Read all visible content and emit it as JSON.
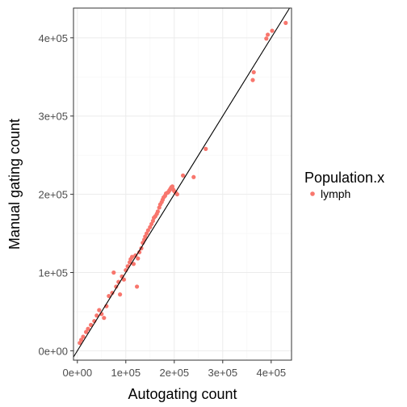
{
  "chart_data": {
    "type": "scatter",
    "xlabel": "Autogating count",
    "ylabel": "Manual gating count",
    "xlim": [
      -8000,
      442000
    ],
    "ylim": [
      -12000,
      438000
    ],
    "x_ticks": [
      0,
      100000,
      200000,
      300000,
      400000
    ],
    "x_tick_labels": [
      "0e+00",
      "1e+05",
      "2e+05",
      "3e+05",
      "4e+05"
    ],
    "y_ticks": [
      0,
      100000,
      200000,
      300000,
      400000
    ],
    "y_tick_labels": [
      "0e+00",
      "1e+05",
      "2e+05",
      "3e+05",
      "4e+05"
    ],
    "grid": true,
    "legend_position": "right",
    "legend": {
      "title": "Population.x",
      "entries": [
        {
          "label": "lymph",
          "color": "#F8766D"
        }
      ]
    },
    "reference_line": {
      "type": "identity",
      "slope": 1,
      "intercept": 0,
      "color": "#000000"
    },
    "series": [
      {
        "name": "lymph",
        "color": "#F8766D",
        "points": [
          [
            5000,
            10000
          ],
          [
            8000,
            14000
          ],
          [
            12000,
            18000
          ],
          [
            18000,
            24000
          ],
          [
            22000,
            28000
          ],
          [
            28000,
            33000
          ],
          [
            35000,
            38000
          ],
          [
            40000,
            45000
          ],
          [
            45000,
            52000
          ],
          [
            50000,
            47000
          ],
          [
            55000,
            42000
          ],
          [
            60000,
            57000
          ],
          [
            65000,
            70000
          ],
          [
            72000,
            74000
          ],
          [
            75000,
            100000
          ],
          [
            80000,
            82000
          ],
          [
            85000,
            88000
          ],
          [
            88000,
            72000
          ],
          [
            92000,
            95000
          ],
          [
            96000,
            91000
          ],
          [
            100000,
            103000
          ],
          [
            104000,
            108000
          ],
          [
            108000,
            113000
          ],
          [
            110000,
            117000
          ],
          [
            113000,
            120000
          ],
          [
            116000,
            111000
          ],
          [
            120000,
            122000
          ],
          [
            123000,
            82000
          ],
          [
            125000,
            118000
          ],
          [
            128000,
            126000
          ],
          [
            132000,
            131000
          ],
          [
            135000,
            138000
          ],
          [
            138000,
            142000
          ],
          [
            140000,
            146000
          ],
          [
            143000,
            150000
          ],
          [
            146000,
            154000
          ],
          [
            150000,
            158000
          ],
          [
            153000,
            162000
          ],
          [
            156000,
            166000
          ],
          [
            158000,
            170000
          ],
          [
            161000,
            172000
          ],
          [
            164000,
            175000
          ],
          [
            166000,
            178000
          ],
          [
            169000,
            183000
          ],
          [
            171000,
            187000
          ],
          [
            174000,
            190000
          ],
          [
            176000,
            193000
          ],
          [
            178000,
            196000
          ],
          [
            181000,
            198000
          ],
          [
            183000,
            201000
          ],
          [
            186000,
            202000
          ],
          [
            188000,
            203000
          ],
          [
            190000,
            205000
          ],
          [
            192000,
            207000
          ],
          [
            194000,
            209000
          ],
          [
            196000,
            210000
          ],
          [
            198000,
            206000
          ],
          [
            200000,
            204000
          ],
          [
            203000,
            202000
          ],
          [
            206000,
            200000
          ],
          [
            218000,
            224000
          ],
          [
            240000,
            222000
          ],
          [
            265000,
            258000
          ],
          [
            362000,
            346000
          ],
          [
            364000,
            356000
          ],
          [
            390000,
            399000
          ],
          [
            393000,
            404000
          ],
          [
            402000,
            409000
          ],
          [
            430000,
            419000
          ]
        ]
      }
    ]
  }
}
